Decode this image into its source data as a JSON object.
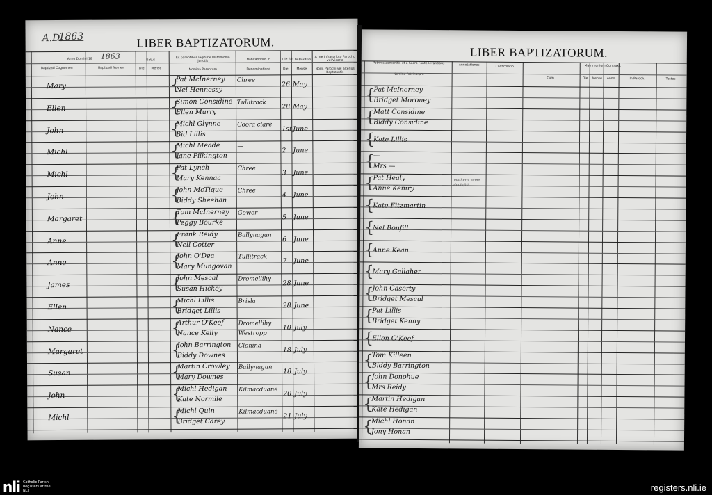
{
  "left_page": {
    "year_label": "A.D.",
    "year": "1863",
    "title": "LIBER BAPTIZATORUM.",
    "anno_domini_label": "Anno Domini 18",
    "anno_domini_value": "1863",
    "headers": {
      "cognomen": "Baptizati Cognomen",
      "nomen": "Baptizati Nomen",
      "natus": "Natus",
      "natus_die": "Die",
      "natus_mense": "Mense",
      "parentes": "Ex parentibus legitime Matrimonio junctis",
      "nomina_parentum": "Nomina Parentum",
      "habitantibus": "Habitantibus in",
      "denominatione": "Denominatione",
      "baptizatus": "Die fuit Baptizatus",
      "bapt_die": "Die",
      "bapt_mense": "Mense",
      "parocho": "A me Infrascripto Parocho vel Vicario",
      "nom_parochi": "Nom. Parochi vel alterius Baptizantis"
    },
    "entries": [
      {
        "name": "Mary",
        "father": "Pat McInerney",
        "mother": "Nel Hennessy",
        "residence": "Chree",
        "day": "26",
        "month": "May"
      },
      {
        "name": "Ellen",
        "father": "Simon Considine",
        "mother": "Ellen Murry",
        "residence": "Tullitrack",
        "day": "28",
        "month": "May"
      },
      {
        "name": "John",
        "father": "Michl Glynne",
        "mother": "Bid Lillis",
        "residence": "Coora clare",
        "day": "1st",
        "month": "June"
      },
      {
        "name": "Michl",
        "father": "Michl Meade",
        "mother": "Jane Pilkington",
        "residence": "—",
        "day": "2",
        "month": "June"
      },
      {
        "name": "Michl",
        "father": "Pat Lynch",
        "mother": "Mary Kennaa",
        "residence": "Chree",
        "day": "3",
        "month": "June"
      },
      {
        "name": "John",
        "father": "John McTigue",
        "mother": "Biddy Sheehan",
        "residence": "Chree",
        "day": "4",
        "month": "June"
      },
      {
        "name": "Margaret",
        "father": "Tom McInerney",
        "mother": "Peggy Bourke",
        "residence": "Gower",
        "day": "5",
        "month": "June"
      },
      {
        "name": "Anne",
        "father": "Frank Reidy",
        "mother": "Nell Cotter",
        "residence": "Ballynagun",
        "day": "6",
        "month": "June"
      },
      {
        "name": "Anne",
        "father": "John O'Dea",
        "mother": "Mary Mungovan",
        "residence": "Tullitrack",
        "day": "7",
        "month": "June"
      },
      {
        "name": "James",
        "father": "John Mescal",
        "mother": "Susan Hickey",
        "residence": "Dromellihy",
        "day": "28",
        "month": "June"
      },
      {
        "name": "Ellen",
        "father": "Michl Lillis",
        "mother": "Bridget Lillis",
        "residence": "Brisla",
        "day": "28",
        "month": "June"
      },
      {
        "name": "Nance",
        "father": "Arthur O'Keef",
        "mother": "Nance Kelly",
        "residence": "Dromellihy Westropp",
        "day": "10",
        "month": "July"
      },
      {
        "name": "Margaret",
        "father": "John Barrington",
        "mother": "Biddy Downes",
        "residence": "Clonina",
        "day": "18",
        "month": "July"
      },
      {
        "name": "Susan",
        "father": "Martin Crowley",
        "mother": "Mary Downes",
        "residence": "Ballynagun",
        "day": "18",
        "month": "July"
      },
      {
        "name": "John",
        "father": "Michl Hedigan",
        "mother": "Kate Normile",
        "residence": "Kilmacduane",
        "day": "20",
        "month": "July"
      },
      {
        "name": "Michl",
        "father": "Michl Quin",
        "mother": "Bridget Carey",
        "residence": "Kilmacduane",
        "day": "21",
        "month": "July"
      }
    ]
  },
  "right_page": {
    "title": "LIBER BAPTIZATORUM.",
    "headers": {
      "patrini": "Patrinis admonitis et a Sacro Fonte levantibus",
      "nomina_patrinorum": "Nomina Patrinorum",
      "annotations": "Annotationes",
      "confirmatio": "Confirmatio",
      "matrimonium": "Matrimonium Contraxit",
      "cum": "Cum",
      "die": "Die",
      "mense": "Mense",
      "anno": "Anno",
      "in_paroch": "In Paroch.",
      "testes": "Testes"
    },
    "entries": [
      {
        "sponsor1": "Pat McInerney",
        "sponsor2": "Bridget Moroney",
        "note": ""
      },
      {
        "sponsor1": "Matt Considine",
        "sponsor2": "Biddy Considine",
        "note": ""
      },
      {
        "sponsor1": "",
        "sponsor2": "Kate Lillis",
        "note": ""
      },
      {
        "sponsor1": "—",
        "sponsor2": "Mrs —",
        "note": ""
      },
      {
        "sponsor1": "Pat Healy",
        "sponsor2": "Anne Keniry",
        "note": "mother's name doubtful"
      },
      {
        "sponsor1": "",
        "sponsor2": "Kate Fitzmartin",
        "note": ""
      },
      {
        "sponsor1": "",
        "sponsor2": "Nel Bonfill",
        "note": ""
      },
      {
        "sponsor1": "",
        "sponsor2": "Anne Kean",
        "note": ""
      },
      {
        "sponsor1": "",
        "sponsor2": "Mary Gallaher",
        "note": ""
      },
      {
        "sponsor1": "John Caserty",
        "sponsor2": "Bridget Mescal",
        "note": ""
      },
      {
        "sponsor1": "Pat Lillis",
        "sponsor2": "Bridget Kenny",
        "note": ""
      },
      {
        "sponsor1": "",
        "sponsor2": "Ellen O'Keef",
        "note": ""
      },
      {
        "sponsor1": "Tom Killeen",
        "sponsor2": "Biddy Barrington",
        "note": ""
      },
      {
        "sponsor1": "John Donohue",
        "sponsor2": "Mrs Reidy",
        "note": ""
      },
      {
        "sponsor1": "Martin Hedigan",
        "sponsor2": "Kate Hedigan",
        "note": ""
      },
      {
        "sponsor1": "Michl Honan",
        "sponsor2": "Jony Honan",
        "note": ""
      }
    ]
  },
  "footer": {
    "logo_mark": "nli",
    "logo_text": "Catholic Parish Registers at the NLI",
    "site": "registers.nli.ie"
  }
}
